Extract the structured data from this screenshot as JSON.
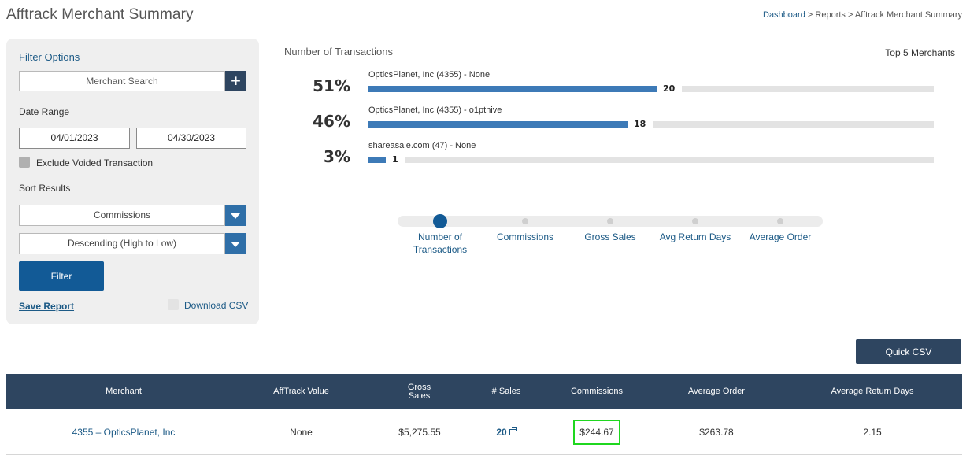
{
  "page": {
    "title": "Afftrack Merchant Summary",
    "breadcrumb": {
      "dashboard": "Dashboard",
      "sep1": ">",
      "reports": "Reports",
      "sep2": ">",
      "current": "Afftrack Merchant Summary"
    }
  },
  "filter": {
    "title": "Filter Options",
    "merchant_search_placeholder": "Merchant Search",
    "add_icon": "plus-icon",
    "date_range_label": "Date Range",
    "start_date": "04/01/2023",
    "end_date": "04/30/2023",
    "exclude_voided_label": "Exclude Voided Transaction",
    "exclude_voided_checked": false,
    "sort_label": "Sort Results",
    "sort_by": "Commissions",
    "sort_order": "Descending (High to Low)",
    "filter_button": "Filter",
    "save_report": "Save Report",
    "download_csv": "Download CSV",
    "download_csv_checked": false
  },
  "chart_data": {
    "type": "bar",
    "title": "Number of Transactions",
    "subtitle": "Top 5 Merchants",
    "categories": [
      "OpticsPlanet, Inc (4355) - None",
      "OpticsPlanet, Inc (4355) - o1pthive",
      "shareasale.com (47) - None"
    ],
    "values": [
      20,
      18,
      1
    ],
    "percentages": [
      "51%",
      "46%",
      "3%"
    ],
    "colors": {
      "fill": "#3d7ab7",
      "track": "#e3e3e3"
    }
  },
  "metric_tabs": {
    "active_index": 0,
    "items": [
      {
        "label": "Number of Transactions"
      },
      {
        "label": "Commissions"
      },
      {
        "label": "Gross Sales"
      },
      {
        "label": "Avg Return Days"
      },
      {
        "label": "Average Order"
      }
    ]
  },
  "quick_csv": "Quick CSV",
  "table": {
    "headers": [
      "Merchant",
      "AffTrack Value",
      "Gross Sales",
      "# Sales",
      "Commissions",
      "Average Order",
      "Average Return Days"
    ],
    "rows": [
      {
        "merchant": "4355 – OpticsPlanet, Inc",
        "afftrack_value": "None",
        "gross_sales": "$5,275.55",
        "num_sales": "20",
        "commissions": "$244.67",
        "average_order": "$263.78",
        "avg_return_days": "2.15"
      }
    ]
  },
  "colors": {
    "primary": "#125a96",
    "header": "#2e4560",
    "highlight": "#1fd71f",
    "link": "#1c5a86"
  }
}
